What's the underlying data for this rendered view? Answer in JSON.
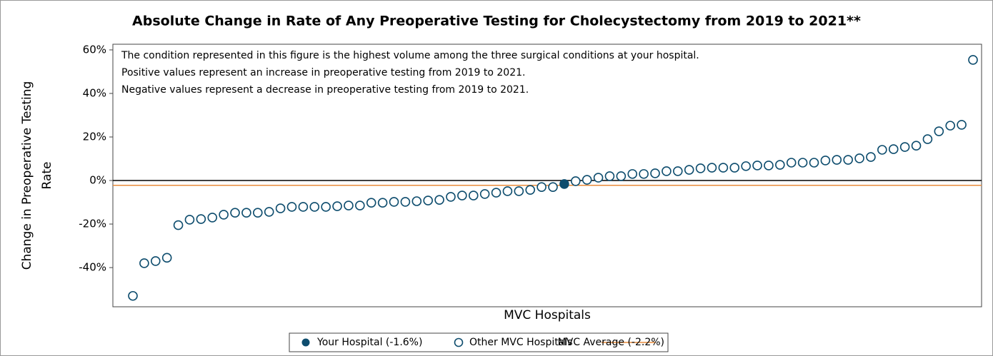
{
  "chart_data": {
    "type": "scatter",
    "title": "Absolute Change in Rate of Any Preoperative Testing for Cholecystectomy from 2019 to 2021**",
    "notes": [
      "The condition represented in this figure is the highest volume among the three surgical conditions at your hospital.",
      "Positive values represent an increase in preoperative testing from 2019 to 2021.",
      "Negative values represent a decrease in preoperative testing from 2019 to 2021."
    ],
    "y_label": [
      "Change in Preoperative Testing",
      "Rate"
    ],
    "x_label": "MVC Hospitals",
    "ylim": [
      -58,
      62.6
    ],
    "yticks": [
      {
        "value": -40,
        "label": "-40%"
      },
      {
        "value": -20,
        "label": "-20%"
      },
      {
        "value": 0,
        "label": "0%"
      },
      {
        "value": 20,
        "label": "20%"
      },
      {
        "value": 40,
        "label": "40%"
      },
      {
        "value": 60,
        "label": "60%"
      }
    ],
    "series": [
      {
        "name": "Your Hospital (-1.6%)",
        "color": "#0e4d6e",
        "filled": true,
        "values": [
          null,
          null,
          null,
          null,
          null,
          null,
          null,
          null,
          null,
          null,
          null,
          null,
          null,
          null,
          null,
          null,
          null,
          null,
          null,
          null,
          null,
          null,
          null,
          null,
          null,
          null,
          null,
          null,
          null,
          null,
          null,
          null,
          null,
          null,
          null,
          null,
          null,
          null,
          -1.6,
          null,
          null,
          null,
          null,
          null,
          null,
          null,
          null,
          null,
          null,
          null,
          null,
          null,
          null,
          null,
          null,
          null,
          null,
          null,
          null,
          null,
          null,
          null,
          null,
          null,
          null,
          null,
          null,
          null,
          null,
          null,
          null,
          null,
          null,
          null,
          null
        ]
      },
      {
        "name": "Other MVC Hospitals",
        "color": "#0e4d6e",
        "filled": false,
        "values": [
          -53,
          -38,
          -37,
          -35.5,
          -20.5,
          -18,
          -17.7,
          -17,
          -15.7,
          -14.8,
          -14.8,
          -14.8,
          -14.4,
          -12.8,
          -12.1,
          -12.1,
          -12.1,
          -12.1,
          -11.8,
          -11.5,
          -11.5,
          -10.2,
          -10.2,
          -9.8,
          -9.8,
          -9.5,
          -9.2,
          -8.9,
          -7.5,
          -6.9,
          -6.9,
          -6.2,
          -5.6,
          -4.9,
          -4.9,
          -4.3,
          -3.0,
          -3.0,
          null,
          -0.3,
          0.3,
          1.3,
          2.0,
          2.0,
          3.0,
          3.0,
          3.3,
          4.3,
          4.3,
          4.9,
          5.6,
          5.9,
          5.9,
          5.9,
          6.6,
          6.9,
          6.9,
          7.2,
          8.2,
          8.2,
          8.2,
          9.2,
          9.5,
          9.5,
          10.2,
          10.8,
          14.1,
          14.4,
          15.4,
          16.0,
          19.0,
          22.6,
          25.2,
          25.6,
          55.4
        ]
      }
    ],
    "reference_line": {
      "name": "MVC Average (-2.2%)",
      "value": -2.2,
      "color": "#e98b3a"
    }
  }
}
